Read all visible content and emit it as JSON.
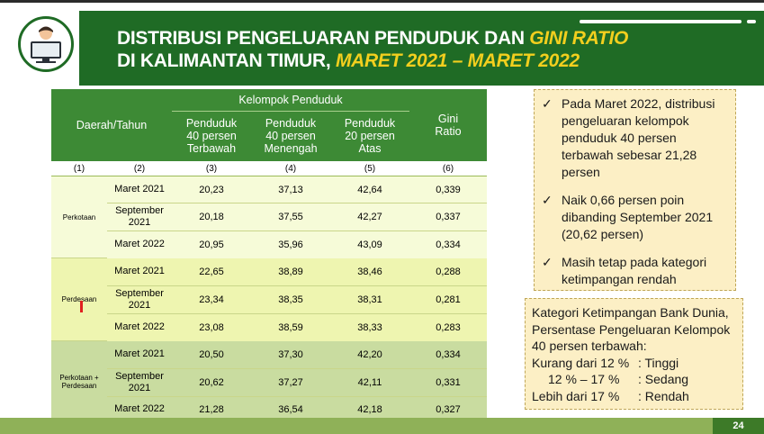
{
  "banner": {
    "title_line1_plain": "DISTRIBUSI PENGELUARAN PENDUDUK DAN ",
    "title_line1_italic": "GINI RATIO",
    "title_line2_plain": "DI KALIMANTAN TIMUR, ",
    "title_line2_italic": "MARET 2021 – MARET 2022",
    "icon": "person-at-computer-icon",
    "brand_color": "#1f6b25",
    "accent_color": "#f2cf1e"
  },
  "table": {
    "header": {
      "region_year": "Daerah/Tahun",
      "group": "Kelompok Penduduk",
      "col3": "Penduduk 40 persen Terbawah",
      "col4": "Penduduk 40 persen Menengah",
      "col5": "Penduduk 20 persen Atas",
      "col6": "Gini Ratio",
      "numbers": [
        "(1)",
        "(2)",
        "(3)",
        "(4)",
        "(5)",
        "(6)"
      ]
    },
    "groups": [
      {
        "region": "Perkotaan",
        "rows": [
          {
            "period": "Maret 2021",
            "v1": "20,23",
            "v2": "37,13",
            "v3": "42,64",
            "gini": "0,339"
          },
          {
            "period": "September 2021",
            "v1": "20,18",
            "v2": "37,55",
            "v3": "42,27",
            "gini": "0,337"
          },
          {
            "period": "Maret 2022",
            "v1": "20,95",
            "v2": "35,96",
            "v3": "43,09",
            "gini": "0,334"
          }
        ]
      },
      {
        "region": "Perdesaan",
        "rows": [
          {
            "period": "Maret 2021",
            "v1": "22,65",
            "v2": "38,89",
            "v3": "38,46",
            "gini": "0,288"
          },
          {
            "period": "September 2021",
            "v1": "23,34",
            "v2": "38,35",
            "v3": "38,31",
            "gini": "0,281"
          },
          {
            "period": "Maret 2022",
            "v1": "23,08",
            "v2": "38,59",
            "v3": "38,33",
            "gini": "0,283"
          }
        ]
      },
      {
        "region": "Perkotaan + Perdesaan",
        "rows": [
          {
            "period": "Maret 2021",
            "v1": "20,50",
            "v2": "37,30",
            "v3": "42,20",
            "gini": "0,334"
          },
          {
            "period": "September 2021",
            "v1": "20,62",
            "v2": "37,27",
            "v3": "42,11",
            "gini": "0,331"
          },
          {
            "period": "Maret 2022",
            "v1": "21,28",
            "v2": "36,54",
            "v3": "42,18",
            "gini": "0,327"
          }
        ]
      }
    ]
  },
  "notes": [
    "Pada Maret 2022, distribusi pengeluaran kelompok penduduk 40 persen terbawah sebesar 21,28 persen",
    "Naik 0,66 persen poin dibanding September 2021 (20,62 persen)",
    "Masih tetap pada kategori ketimpangan rendah"
  ],
  "note_bullet": "✓",
  "world_bank": {
    "heading": "Kategori Ketimpangan Bank Dunia, Persentase Pengeluaran Kelompok 40 persen terbawah:",
    "rows": [
      {
        "range": "Kurang dari 12 %",
        "label": ": Tinggi"
      },
      {
        "range": "12 % – 17 %",
        "label": ": Sedang"
      },
      {
        "range": "Lebih dari 17 %",
        "label": ": Rendah"
      }
    ]
  },
  "page_number": "24"
}
